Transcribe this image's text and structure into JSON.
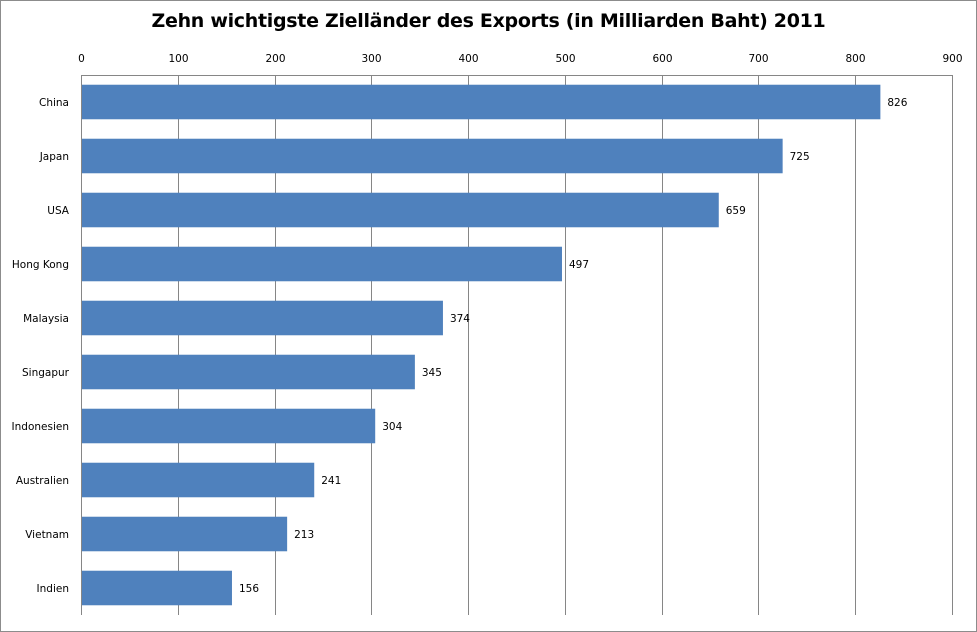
{
  "chart_data": {
    "type": "bar",
    "orientation": "horizontal",
    "title": "Zehn wichtigste Zielländer des Exports (in Milliarden Baht) 2011",
    "xlabel": "",
    "ylabel": "",
    "categories": [
      "China",
      "Japan",
      "USA",
      "Hong Kong",
      "Malaysia",
      "Singapur",
      "Indonesien",
      "Australien",
      "Vietnam",
      "Indien"
    ],
    "values": [
      826,
      725,
      659,
      497,
      374,
      345,
      304,
      241,
      213,
      156
    ],
    "data_labels": [
      "826",
      "725",
      "659",
      "497",
      "374",
      "345",
      "304",
      "241",
      "213",
      "156"
    ],
    "xlim": [
      0,
      900
    ],
    "x_ticks": [
      0,
      100,
      200,
      300,
      400,
      500,
      600,
      700,
      800,
      900
    ],
    "x_tick_labels": [
      "0",
      "100",
      "200",
      "300",
      "400",
      "500",
      "600",
      "700",
      "800",
      "900"
    ],
    "x_axis_position": "top",
    "grid": "vertical",
    "legend": "none",
    "bar_color": "#4f81bd"
  }
}
